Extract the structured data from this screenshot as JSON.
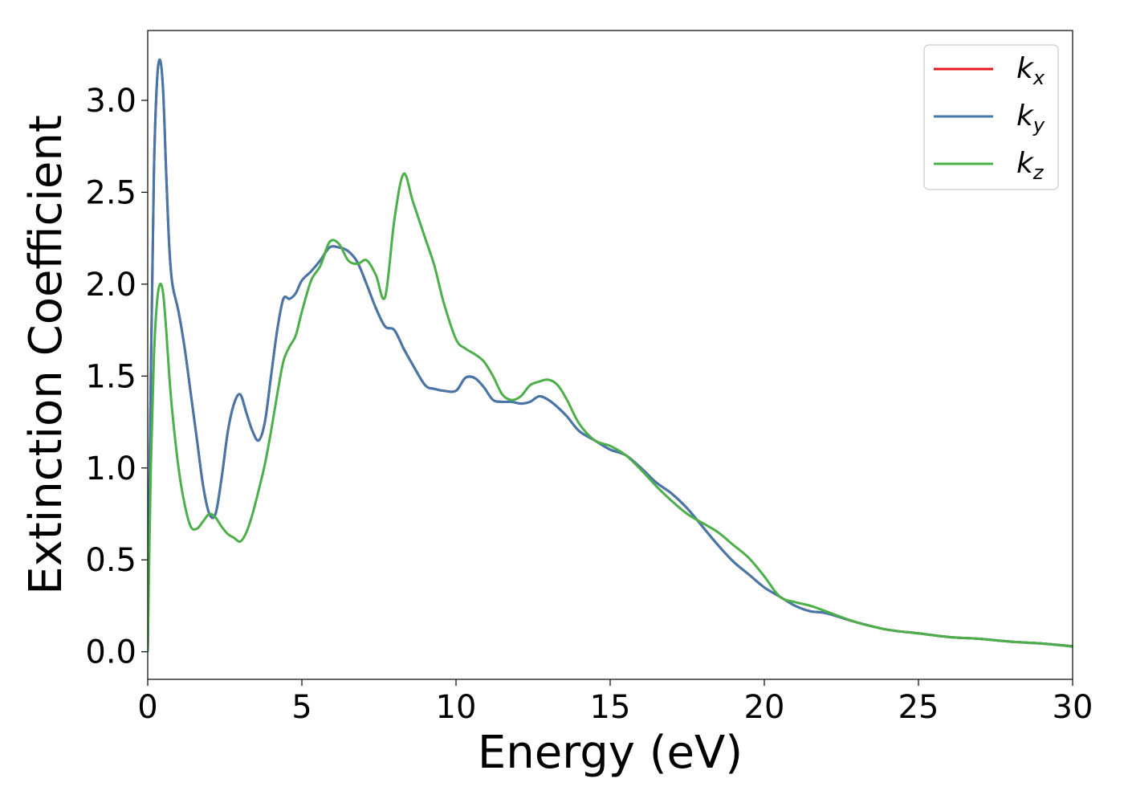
{
  "chart_data": {
    "type": "line",
    "title": "",
    "xlabel": "Energy (eV)",
    "ylabel": "Extinction Coefficient",
    "xlim": [
      0,
      30
    ],
    "ylim": [
      -0.15,
      3.38
    ],
    "xticks": [
      0,
      5,
      10,
      15,
      20,
      25,
      30
    ],
    "xtick_labels": [
      "0",
      "5",
      "10",
      "15",
      "20",
      "25",
      "30"
    ],
    "yticks": [
      0.0,
      0.5,
      1.0,
      1.5,
      2.0,
      2.5,
      3.0
    ],
    "ytick_labels": [
      "0.0",
      "0.5",
      "1.0",
      "1.5",
      "2.0",
      "2.5",
      "3.0"
    ],
    "grid": false,
    "legend": "top-right",
    "series": [
      {
        "name": "k",
        "subscript": "x",
        "color": "#e41a1c",
        "x": [
          0,
          0.1,
          0.2,
          0.3,
          0.4,
          0.5,
          0.6,
          0.7,
          0.8,
          1.0,
          1.2,
          1.4,
          1.6,
          1.8,
          2.0,
          2.2,
          2.4,
          2.6,
          2.8,
          3.0,
          3.2,
          3.4,
          3.6,
          3.8,
          4.0,
          4.2,
          4.4,
          4.6,
          4.8,
          5.0,
          5.3,
          5.6,
          5.9,
          6.2,
          6.5,
          6.8,
          7.1,
          7.4,
          7.7,
          8.0,
          8.3,
          8.6,
          9.0,
          9.3,
          9.6,
          10.0,
          10.3,
          10.6,
          10.9,
          11.2,
          11.5,
          11.8,
          12.1,
          12.4,
          12.7,
          13.0,
          13.3,
          13.6,
          14.0,
          14.5,
          15.0,
          15.5,
          16.0,
          16.5,
          17.0,
          17.5,
          18.0,
          18.5,
          19.0,
          19.5,
          20.0,
          20.5,
          21.0,
          21.5,
          22.0,
          23.0,
          24.0,
          25.0,
          26.0,
          27.0,
          28.0,
          29.0,
          30.0
        ],
        "y": [
          0.0,
          1.5,
          2.6,
          3.1,
          3.22,
          3.05,
          2.6,
          2.2,
          2.0,
          1.85,
          1.65,
          1.4,
          1.15,
          0.9,
          0.75,
          0.75,
          0.95,
          1.2,
          1.35,
          1.4,
          1.3,
          1.2,
          1.15,
          1.25,
          1.5,
          1.75,
          1.92,
          1.92,
          1.95,
          2.02,
          2.07,
          2.13,
          2.2,
          2.2,
          2.18,
          2.12,
          2.0,
          1.87,
          1.77,
          1.75,
          1.65,
          1.56,
          1.45,
          1.43,
          1.42,
          1.42,
          1.49,
          1.49,
          1.44,
          1.37,
          1.36,
          1.36,
          1.35,
          1.36,
          1.39,
          1.37,
          1.33,
          1.28,
          1.2,
          1.15,
          1.1,
          1.07,
          1.0,
          0.92,
          0.86,
          0.78,
          0.68,
          0.58,
          0.49,
          0.42,
          0.35,
          0.3,
          0.25,
          0.22,
          0.21,
          0.16,
          0.12,
          0.1,
          0.08,
          0.07,
          0.055,
          0.045,
          0.03
        ]
      },
      {
        "name": "k",
        "subscript": "y",
        "color": "#4477aa",
        "x": [
          0,
          0.1,
          0.2,
          0.3,
          0.4,
          0.5,
          0.6,
          0.7,
          0.8,
          1.0,
          1.2,
          1.4,
          1.6,
          1.8,
          2.0,
          2.2,
          2.4,
          2.6,
          2.8,
          3.0,
          3.2,
          3.4,
          3.6,
          3.8,
          4.0,
          4.2,
          4.4,
          4.6,
          4.8,
          5.0,
          5.3,
          5.6,
          5.9,
          6.2,
          6.5,
          6.8,
          7.1,
          7.4,
          7.7,
          8.0,
          8.3,
          8.6,
          9.0,
          9.3,
          9.6,
          10.0,
          10.3,
          10.6,
          10.9,
          11.2,
          11.5,
          11.8,
          12.1,
          12.4,
          12.7,
          13.0,
          13.3,
          13.6,
          14.0,
          14.5,
          15.0,
          15.5,
          16.0,
          16.5,
          17.0,
          17.5,
          18.0,
          18.5,
          19.0,
          19.5,
          20.0,
          20.5,
          21.0,
          21.5,
          22.0,
          23.0,
          24.0,
          25.0,
          26.0,
          27.0,
          28.0,
          29.0,
          30.0
        ],
        "y": [
          0.0,
          1.5,
          2.6,
          3.1,
          3.22,
          3.05,
          2.6,
          2.2,
          2.0,
          1.85,
          1.65,
          1.4,
          1.15,
          0.9,
          0.75,
          0.75,
          0.95,
          1.2,
          1.35,
          1.4,
          1.3,
          1.2,
          1.15,
          1.25,
          1.5,
          1.75,
          1.92,
          1.92,
          1.95,
          2.02,
          2.07,
          2.13,
          2.2,
          2.2,
          2.18,
          2.12,
          2.0,
          1.87,
          1.77,
          1.75,
          1.65,
          1.56,
          1.45,
          1.43,
          1.42,
          1.42,
          1.49,
          1.49,
          1.44,
          1.37,
          1.36,
          1.36,
          1.35,
          1.36,
          1.39,
          1.37,
          1.33,
          1.28,
          1.2,
          1.15,
          1.1,
          1.07,
          1.0,
          0.92,
          0.86,
          0.78,
          0.68,
          0.58,
          0.49,
          0.42,
          0.35,
          0.3,
          0.25,
          0.22,
          0.21,
          0.16,
          0.12,
          0.1,
          0.08,
          0.07,
          0.055,
          0.045,
          0.03
        ]
      },
      {
        "name": "k",
        "subscript": "z",
        "color": "#4daf4a",
        "x": [
          0,
          0.1,
          0.2,
          0.3,
          0.4,
          0.5,
          0.6,
          0.7,
          0.8,
          1.0,
          1.2,
          1.4,
          1.6,
          1.8,
          2.0,
          2.2,
          2.4,
          2.6,
          2.8,
          3.0,
          3.2,
          3.4,
          3.6,
          3.8,
          4.0,
          4.2,
          4.4,
          4.6,
          4.8,
          5.0,
          5.3,
          5.6,
          5.9,
          6.2,
          6.5,
          6.8,
          7.1,
          7.4,
          7.7,
          8.0,
          8.3,
          8.6,
          9.0,
          9.3,
          9.6,
          10.0,
          10.3,
          10.6,
          10.9,
          11.2,
          11.5,
          11.8,
          12.1,
          12.4,
          12.7,
          13.0,
          13.3,
          13.6,
          14.0,
          14.5,
          15.0,
          15.5,
          16.0,
          16.5,
          17.0,
          17.5,
          18.0,
          18.5,
          19.0,
          19.5,
          20.0,
          20.5,
          21.0,
          21.5,
          22.0,
          23.0,
          24.0,
          25.0,
          26.0,
          27.0,
          28.0,
          29.0,
          30.0
        ],
        "y": [
          0.0,
          1.0,
          1.6,
          1.9,
          2.0,
          1.95,
          1.75,
          1.5,
          1.3,
          1.0,
          0.8,
          0.68,
          0.67,
          0.71,
          0.75,
          0.73,
          0.68,
          0.64,
          0.62,
          0.6,
          0.65,
          0.75,
          0.88,
          1.02,
          1.2,
          1.4,
          1.58,
          1.66,
          1.72,
          1.85,
          2.02,
          2.1,
          2.23,
          2.22,
          2.13,
          2.11,
          2.13,
          2.05,
          1.93,
          2.35,
          2.6,
          2.45,
          2.25,
          2.1,
          1.9,
          1.7,
          1.65,
          1.62,
          1.58,
          1.5,
          1.4,
          1.37,
          1.39,
          1.45,
          1.47,
          1.48,
          1.45,
          1.37,
          1.24,
          1.15,
          1.12,
          1.07,
          0.99,
          0.9,
          0.82,
          0.75,
          0.7,
          0.65,
          0.58,
          0.51,
          0.41,
          0.3,
          0.27,
          0.25,
          0.22,
          0.16,
          0.12,
          0.1,
          0.08,
          0.07,
          0.055,
          0.045,
          0.028
        ]
      }
    ]
  }
}
